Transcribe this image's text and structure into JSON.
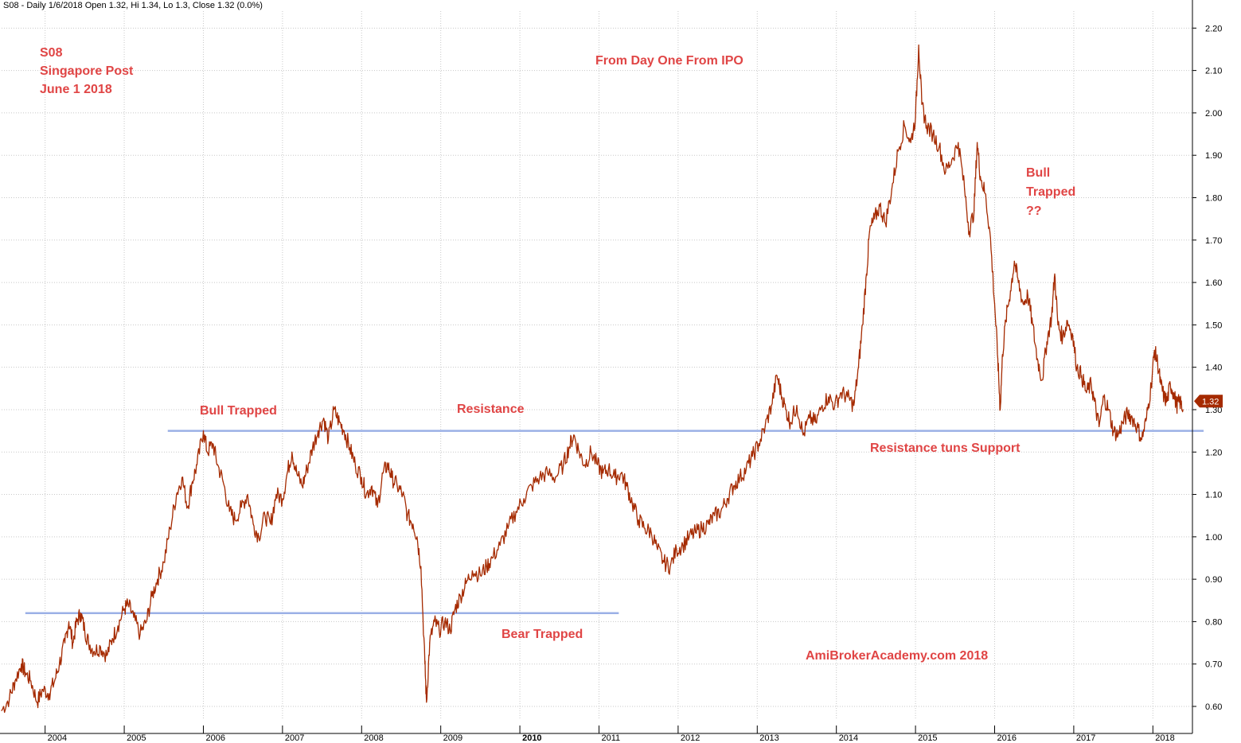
{
  "header": {
    "text": "S08 - Daily 1/6/2018 Open 1.32, Hi 1.34, Lo 1.3, Close 1.32 (0.0%)"
  },
  "annotations": {
    "symbol": "S08",
    "company": "Singapore Post",
    "date": "June 1 2018",
    "ipo_note": "From Day One From IPO",
    "bull_trapped_left": "Bull Trapped",
    "resistance": "Resistance",
    "resistance_support": "Resistance tuns Support",
    "bear_trapped": "Bear Trapped",
    "bull_trapped_right_1": "Bull",
    "bull_trapped_right_2": "Trapped",
    "bull_trapped_right_3": "??",
    "watermark": "AmiBrokerAcademy.com   2018"
  },
  "colors": {
    "price": "#a52a00",
    "hline": "#9bb0e6",
    "annotation": "#e04545",
    "grid": "#c8c8c8",
    "last_price_box": "#a52a00"
  },
  "chart_data": {
    "type": "line",
    "title": "",
    "xlabel": "",
    "ylabel": "",
    "ylim": [
      0.57,
      2.24
    ],
    "xlim": [
      2003.45,
      2018.5
    ],
    "grid": true,
    "yticks": [
      "0.60",
      "0.70",
      "0.80",
      "0.90",
      "1.00",
      "1.10",
      "1.20",
      "1.30",
      "1.40",
      "1.50",
      "1.60",
      "1.70",
      "1.80",
      "1.90",
      "2.00",
      "2.10",
      "2.20"
    ],
    "xticks": [
      {
        "label": "2004",
        "x": 2004.0,
        "bold": false
      },
      {
        "label": "2005",
        "x": 2005.0,
        "bold": false
      },
      {
        "label": "2006",
        "x": 2006.0,
        "bold": false
      },
      {
        "label": "2007",
        "x": 2007.0,
        "bold": false
      },
      {
        "label": "2008",
        "x": 2008.0,
        "bold": false
      },
      {
        "label": "2009",
        "x": 2009.0,
        "bold": false
      },
      {
        "label": "2010",
        "x": 2010.0,
        "bold": true
      },
      {
        "label": "2011",
        "x": 2011.0,
        "bold": false
      },
      {
        "label": "2012",
        "x": 2012.0,
        "bold": false
      },
      {
        "label": "2013",
        "x": 2013.0,
        "bold": false
      },
      {
        "label": "2014",
        "x": 2014.0,
        "bold": false
      },
      {
        "label": "2015",
        "x": 2015.0,
        "bold": false
      },
      {
        "label": "2016",
        "x": 2016.0,
        "bold": false
      },
      {
        "label": "2017",
        "x": 2017.0,
        "bold": false
      },
      {
        "label": "2018",
        "x": 2018.0,
        "bold": false
      }
    ],
    "horizontal_lines": [
      {
        "name": "resistance-line",
        "y": 1.25,
        "x_start": 2005.55,
        "x_end": 2018.65
      },
      {
        "name": "bear-trapped-line",
        "y": 0.82,
        "x_start": 2003.75,
        "x_end": 2011.25
      }
    ],
    "last_price": {
      "label": "1.32",
      "value": 1.32
    },
    "series": [
      {
        "points": [
          [
            2003.45,
            0.59
          ],
          [
            2003.55,
            0.62
          ],
          [
            2003.62,
            0.66
          ],
          [
            2003.7,
            0.7
          ],
          [
            2003.75,
            0.68
          ],
          [
            2003.82,
            0.66
          ],
          [
            2003.9,
            0.61
          ],
          [
            2003.97,
            0.64
          ],
          [
            2004.05,
            0.63
          ],
          [
            2004.12,
            0.66
          ],
          [
            2004.18,
            0.7
          ],
          [
            2004.25,
            0.75
          ],
          [
            2004.3,
            0.8
          ],
          [
            2004.35,
            0.75
          ],
          [
            2004.4,
            0.8
          ],
          [
            2004.45,
            0.82
          ],
          [
            2004.5,
            0.78
          ],
          [
            2004.55,
            0.75
          ],
          [
            2004.62,
            0.73
          ],
          [
            2004.7,
            0.74
          ],
          [
            2004.78,
            0.72
          ],
          [
            2004.85,
            0.76
          ],
          [
            2004.92,
            0.79
          ],
          [
            2005.0,
            0.83
          ],
          [
            2005.05,
            0.84
          ],
          [
            2005.12,
            0.81
          ],
          [
            2005.2,
            0.77
          ],
          [
            2005.28,
            0.8
          ],
          [
            2005.35,
            0.86
          ],
          [
            2005.42,
            0.9
          ],
          [
            2005.5,
            0.94
          ],
          [
            2005.58,
            1.02
          ],
          [
            2005.66,
            1.1
          ],
          [
            2005.73,
            1.14
          ],
          [
            2005.8,
            1.07
          ],
          [
            2005.86,
            1.13
          ],
          [
            2005.92,
            1.17
          ],
          [
            2006.0,
            1.25
          ],
          [
            2006.05,
            1.2
          ],
          [
            2006.12,
            1.22
          ],
          [
            2006.18,
            1.17
          ],
          [
            2006.25,
            1.13
          ],
          [
            2006.33,
            1.06
          ],
          [
            2006.4,
            1.04
          ],
          [
            2006.48,
            1.07
          ],
          [
            2006.56,
            1.1
          ],
          [
            2006.63,
            1.03
          ],
          [
            2006.7,
            1.0
          ],
          [
            2006.78,
            1.05
          ],
          [
            2006.85,
            1.03
          ],
          [
            2006.92,
            1.1
          ],
          [
            2007.0,
            1.09
          ],
          [
            2007.06,
            1.15
          ],
          [
            2007.12,
            1.2
          ],
          [
            2007.18,
            1.15
          ],
          [
            2007.25,
            1.12
          ],
          [
            2007.31,
            1.16
          ],
          [
            2007.38,
            1.21
          ],
          [
            2007.45,
            1.25
          ],
          [
            2007.52,
            1.28
          ],
          [
            2007.58,
            1.23
          ],
          [
            2007.65,
            1.3
          ],
          [
            2007.72,
            1.27
          ],
          [
            2007.78,
            1.25
          ],
          [
            2007.85,
            1.21
          ],
          [
            2007.92,
            1.17
          ],
          [
            2008.0,
            1.14
          ],
          [
            2008.06,
            1.1
          ],
          [
            2008.13,
            1.12
          ],
          [
            2008.2,
            1.07
          ],
          [
            2008.27,
            1.15
          ],
          [
            2008.33,
            1.17
          ],
          [
            2008.38,
            1.14
          ],
          [
            2008.45,
            1.12
          ],
          [
            2008.52,
            1.1
          ],
          [
            2008.58,
            1.05
          ],
          [
            2008.65,
            1.03
          ],
          [
            2008.7,
            1.0
          ],
          [
            2008.75,
            0.93
          ],
          [
            2008.8,
            0.7
          ],
          [
            2008.82,
            0.61
          ],
          [
            2008.86,
            0.75
          ],
          [
            2008.92,
            0.8
          ],
          [
            2008.98,
            0.78
          ],
          [
            2009.05,
            0.8
          ],
          [
            2009.12,
            0.78
          ],
          [
            2009.18,
            0.83
          ],
          [
            2009.25,
            0.86
          ],
          [
            2009.32,
            0.89
          ],
          [
            2009.4,
            0.92
          ],
          [
            2009.5,
            0.91
          ],
          [
            2009.58,
            0.93
          ],
          [
            2009.65,
            0.95
          ],
          [
            2009.75,
            0.98
          ],
          [
            2009.85,
            1.02
          ],
          [
            2009.95,
            1.06
          ],
          [
            2010.05,
            1.09
          ],
          [
            2010.15,
            1.12
          ],
          [
            2010.25,
            1.14
          ],
          [
            2010.35,
            1.15
          ],
          [
            2010.45,
            1.14
          ],
          [
            2010.55,
            1.17
          ],
          [
            2010.62,
            1.21
          ],
          [
            2010.68,
            1.24
          ],
          [
            2010.75,
            1.2
          ],
          [
            2010.82,
            1.17
          ],
          [
            2010.9,
            1.2
          ],
          [
            2010.98,
            1.17
          ],
          [
            2011.05,
            1.15
          ],
          [
            2011.12,
            1.16
          ],
          [
            2011.2,
            1.14
          ],
          [
            2011.28,
            1.15
          ],
          [
            2011.35,
            1.12
          ],
          [
            2011.42,
            1.08
          ],
          [
            2011.5,
            1.04
          ],
          [
            2011.58,
            1.02
          ],
          [
            2011.66,
            1.01
          ],
          [
            2011.74,
            0.97
          ],
          [
            2011.82,
            0.94
          ],
          [
            2011.9,
            0.93
          ],
          [
            2011.98,
            0.97
          ],
          [
            2012.06,
            0.98
          ],
          [
            2012.14,
            1.0
          ],
          [
            2012.22,
            1.01
          ],
          [
            2012.3,
            1.02
          ],
          [
            2012.38,
            1.03
          ],
          [
            2012.46,
            1.05
          ],
          [
            2012.54,
            1.06
          ],
          [
            2012.62,
            1.09
          ],
          [
            2012.7,
            1.12
          ],
          [
            2012.78,
            1.14
          ],
          [
            2012.86,
            1.16
          ],
          [
            2012.94,
            1.19
          ],
          [
            2013.02,
            1.22
          ],
          [
            2013.1,
            1.26
          ],
          [
            2013.18,
            1.31
          ],
          [
            2013.25,
            1.38
          ],
          [
            2013.3,
            1.34
          ],
          [
            2013.36,
            1.3
          ],
          [
            2013.42,
            1.27
          ],
          [
            2013.5,
            1.31
          ],
          [
            2013.58,
            1.24
          ],
          [
            2013.66,
            1.28
          ],
          [
            2013.74,
            1.27
          ],
          [
            2013.82,
            1.31
          ],
          [
            2013.9,
            1.33
          ],
          [
            2013.98,
            1.31
          ],
          [
            2014.06,
            1.34
          ],
          [
            2014.14,
            1.33
          ],
          [
            2014.22,
            1.31
          ],
          [
            2014.28,
            1.4
          ],
          [
            2014.33,
            1.5
          ],
          [
            2014.38,
            1.62
          ],
          [
            2014.42,
            1.72
          ],
          [
            2014.48,
            1.75
          ],
          [
            2014.55,
            1.78
          ],
          [
            2014.62,
            1.74
          ],
          [
            2014.7,
            1.82
          ],
          [
            2014.78,
            1.91
          ],
          [
            2014.86,
            1.97
          ],
          [
            2014.94,
            1.93
          ],
          [
            2015.0,
            1.99
          ],
          [
            2015.04,
            2.16
          ],
          [
            2015.08,
            2.02
          ],
          [
            2015.14,
            1.97
          ],
          [
            2015.22,
            1.95
          ],
          [
            2015.3,
            1.92
          ],
          [
            2015.38,
            1.86
          ],
          [
            2015.46,
            1.89
          ],
          [
            2015.54,
            1.93
          ],
          [
            2015.62,
            1.82
          ],
          [
            2015.68,
            1.72
          ],
          [
            2015.74,
            1.77
          ],
          [
            2015.78,
            1.93
          ],
          [
            2015.82,
            1.85
          ],
          [
            2015.88,
            1.81
          ],
          [
            2015.94,
            1.72
          ],
          [
            2016.0,
            1.55
          ],
          [
            2016.04,
            1.42
          ],
          [
            2016.07,
            1.3
          ],
          [
            2016.1,
            1.43
          ],
          [
            2016.14,
            1.51
          ],
          [
            2016.2,
            1.58
          ],
          [
            2016.25,
            1.65
          ],
          [
            2016.3,
            1.6
          ],
          [
            2016.36,
            1.55
          ],
          [
            2016.42,
            1.57
          ],
          [
            2016.48,
            1.5
          ],
          [
            2016.54,
            1.42
          ],
          [
            2016.6,
            1.37
          ],
          [
            2016.66,
            1.46
          ],
          [
            2016.72,
            1.52
          ],
          [
            2016.76,
            1.62
          ],
          [
            2016.8,
            1.5
          ],
          [
            2016.86,
            1.47
          ],
          [
            2016.92,
            1.51
          ],
          [
            2016.98,
            1.48
          ],
          [
            2017.04,
            1.4
          ],
          [
            2017.1,
            1.38
          ],
          [
            2017.16,
            1.34
          ],
          [
            2017.22,
            1.36
          ],
          [
            2017.26,
            1.32
          ],
          [
            2017.32,
            1.26
          ],
          [
            2017.38,
            1.33
          ],
          [
            2017.44,
            1.3
          ],
          [
            2017.5,
            1.25
          ],
          [
            2017.56,
            1.24
          ],
          [
            2017.62,
            1.27
          ],
          [
            2017.68,
            1.29
          ],
          [
            2017.74,
            1.28
          ],
          [
            2017.8,
            1.26
          ],
          [
            2017.86,
            1.23
          ],
          [
            2017.92,
            1.28
          ],
          [
            2017.98,
            1.36
          ],
          [
            2018.02,
            1.44
          ],
          [
            2018.06,
            1.41
          ],
          [
            2018.1,
            1.36
          ],
          [
            2018.14,
            1.33
          ],
          [
            2018.18,
            1.32
          ],
          [
            2018.22,
            1.36
          ],
          [
            2018.26,
            1.34
          ],
          [
            2018.3,
            1.31
          ],
          [
            2018.34,
            1.32
          ],
          [
            2018.38,
            1.3
          ]
        ]
      }
    ]
  }
}
